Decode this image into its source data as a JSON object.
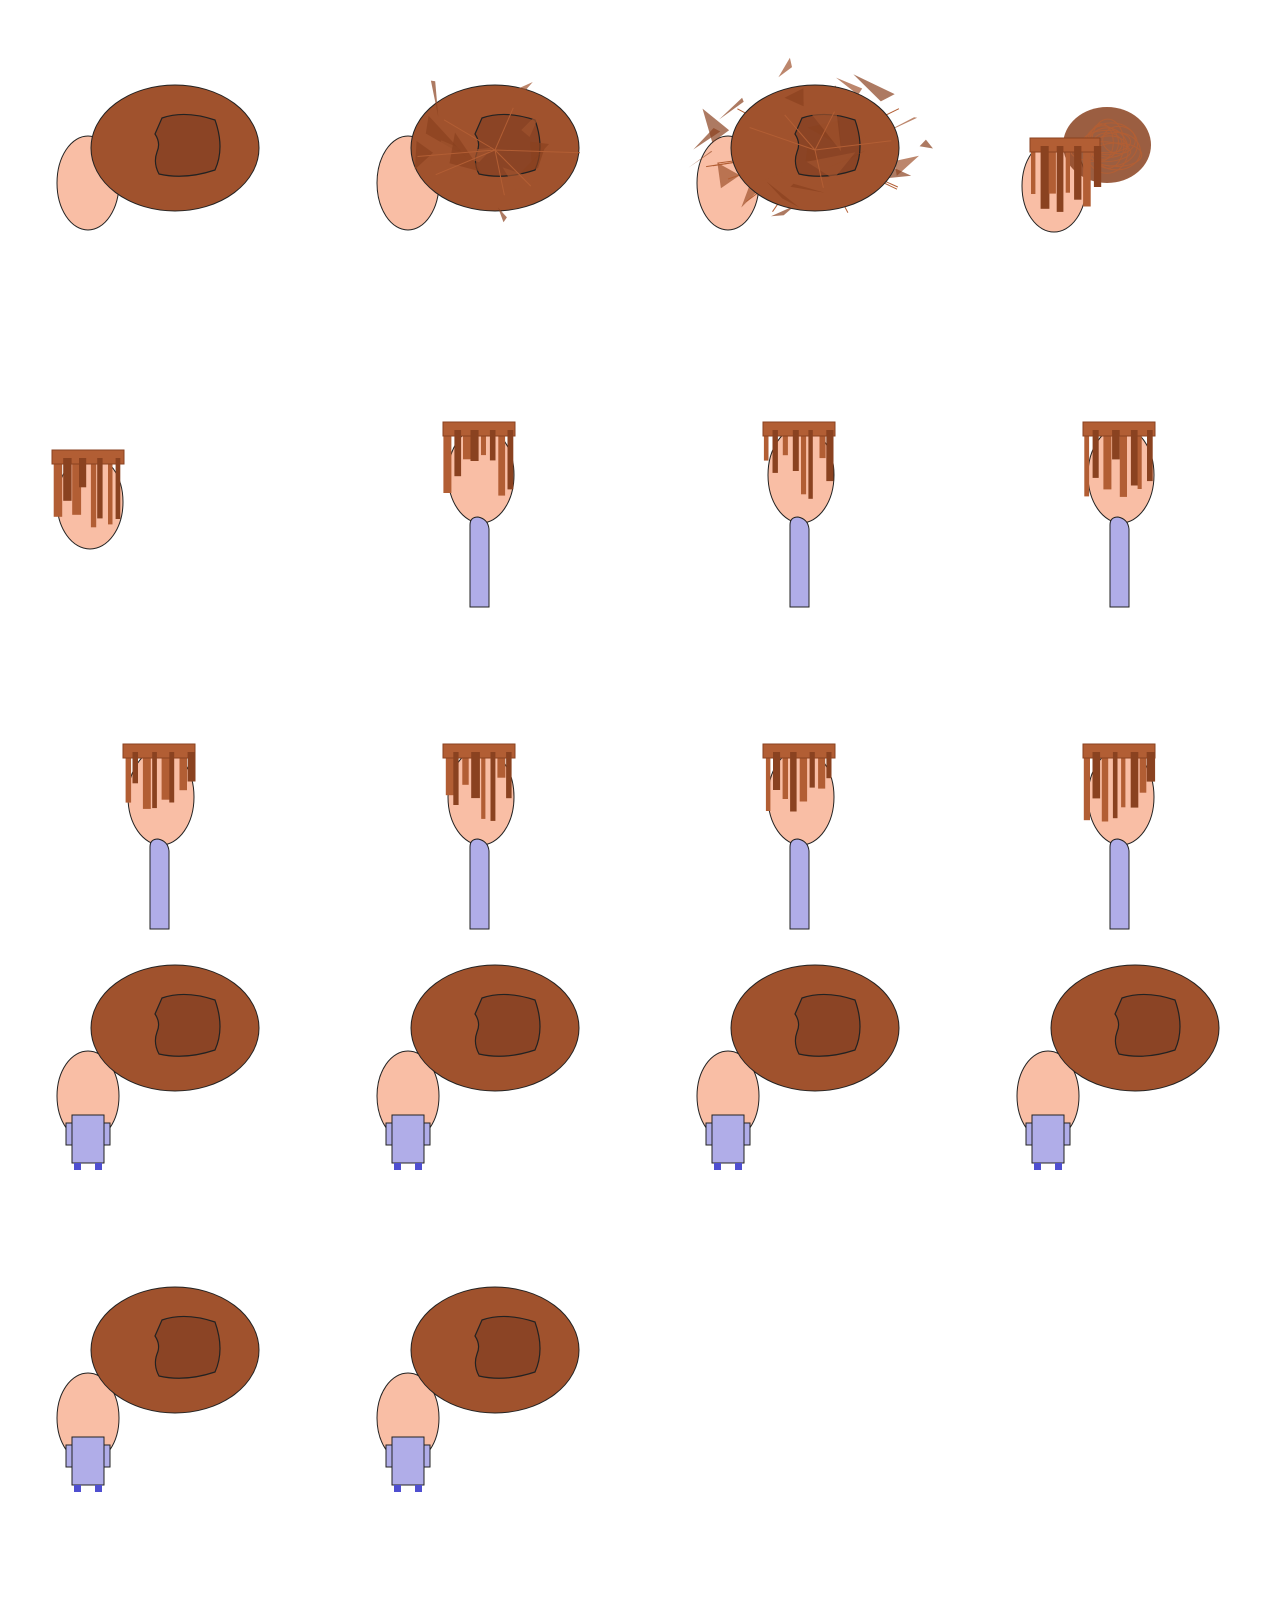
{
  "sheet": {
    "columns": 4,
    "colors": {
      "background": "#ffffff",
      "skin": "#f9bea5",
      "hat": "#a0522d",
      "hat_crown": "#8b4425",
      "hair_light": "#b25e34",
      "hair_dark": "#8a4220",
      "shirt": "#b0ade8",
      "shoe": "#4f4fd0",
      "outline": "#222222"
    },
    "frames": [
      {
        "variant": "hat-side"
      },
      {
        "variant": "hat-shards"
      },
      {
        "variant": "hat-explode"
      },
      {
        "variant": "hair-scribble"
      },
      {
        "variant": "hair-only"
      },
      {
        "variant": "hair-torso"
      },
      {
        "variant": "hair-torso"
      },
      {
        "variant": "hair-torso"
      },
      {
        "variant": "hair-torso"
      },
      {
        "variant": "hair-torso"
      },
      {
        "variant": "hair-torso"
      },
      {
        "variant": "hair-torso"
      },
      {
        "variant": "hat-body"
      },
      {
        "variant": "hat-body"
      },
      {
        "variant": "hat-body"
      },
      {
        "variant": "hat-body"
      },
      {
        "variant": "hat-body"
      },
      {
        "variant": "hat-body"
      }
    ]
  }
}
